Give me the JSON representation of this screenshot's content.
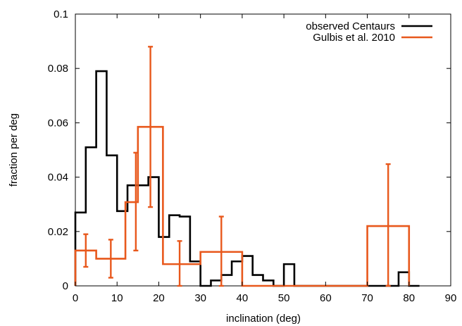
{
  "chart_data": {
    "type": "line",
    "title": "",
    "xlabel": "inclination (deg)",
    "ylabel": "fraction per deg",
    "xlim": [
      0,
      90
    ],
    "ylim": [
      0,
      0.1
    ],
    "xticks": [
      0,
      10,
      20,
      30,
      40,
      50,
      60,
      70,
      80,
      90
    ],
    "yticks": [
      0,
      0.02,
      0.04,
      0.06,
      0.08,
      0.1
    ],
    "xtick_labels": [
      "0",
      "10",
      "20",
      "30",
      "40",
      "50",
      "60",
      "70",
      "80",
      "90"
    ],
    "ytick_labels": [
      "0",
      "0.02",
      "0.04",
      "0.06",
      "0.08",
      "0.1"
    ],
    "grid": false,
    "legend_position": "top-right",
    "series": [
      {
        "name": "observed Centaurs",
        "color": "#000000",
        "style": "step",
        "bin_width": 2.5,
        "bin_edges_start": 0,
        "values": [
          0.027,
          0.051,
          0.079,
          0.048,
          0.0275,
          0.037,
          0.037,
          0.04,
          0.018,
          0.026,
          0.0255,
          0.009,
          0.0,
          0.002,
          0.004,
          0.009,
          0.011,
          0.004,
          0.002,
          0.0,
          0.008,
          0.0,
          0.0,
          0.0,
          0.0,
          0.0,
          0.0,
          0.0,
          0.0,
          0.0,
          0.0,
          0.005,
          0.0
        ]
      },
      {
        "name": "Gulbis et al. 2010",
        "color": "#e8581c",
        "style": "step",
        "bins": [
          {
            "start": 0,
            "end": 5,
            "value": 0.013,
            "err_x": 2.5,
            "err_low": 0.007,
            "err_high": 0.019
          },
          {
            "start": 5,
            "end": 12,
            "value": 0.01,
            "err_x": 8.5,
            "err_low": 0.003,
            "err_high": 0.017
          },
          {
            "start": 12,
            "end": 15,
            "value": 0.0308,
            "err_x": 14.5,
            "err_low": 0.013,
            "err_high": 0.049
          },
          {
            "start": 15,
            "end": 21,
            "value": 0.0585,
            "err_x": 18,
            "err_low": 0.029,
            "err_high": 0.088
          },
          {
            "start": 21,
            "end": 25,
            "value": 0.008,
            "err_x": 25,
            "err_low": 0.0,
            "err_high": 0.0165
          },
          {
            "start": 25,
            "end": 30,
            "value": 0.008,
            "err_x": null,
            "err_low": null,
            "err_high": null
          },
          {
            "start": 30,
            "end": 40,
            "value": 0.0125,
            "err_x": 35,
            "err_low": 0.0,
            "err_high": 0.0255
          },
          {
            "start": 40,
            "end": 70,
            "value": 0.0,
            "err_x": null,
            "err_low": null,
            "err_high": null
          },
          {
            "start": 70,
            "end": 80,
            "value": 0.022,
            "err_x": 75,
            "err_low": 0.0,
            "err_high": 0.0448
          }
        ]
      }
    ]
  }
}
